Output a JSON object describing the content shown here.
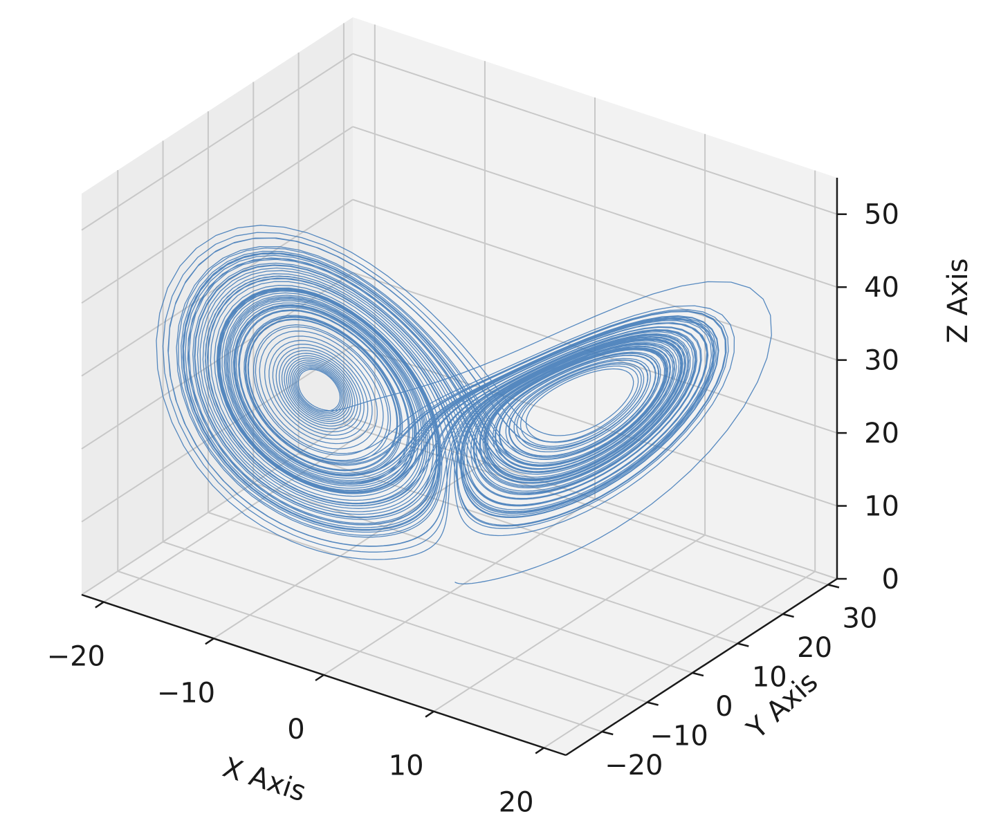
{
  "chart_data": {
    "type": "line",
    "projection": "3d",
    "title": "",
    "xlabel": "X Axis",
    "ylabel": "Y Axis",
    "zlabel": "Z Axis",
    "xlim": [
      -22,
      22
    ],
    "ylim": [
      -28,
      32
    ],
    "zlim": [
      0,
      55
    ],
    "xticks": [
      -20,
      -10,
      0,
      10,
      20
    ],
    "yticks": [
      -20,
      -10,
      0,
      10,
      20,
      30
    ],
    "zticks": [
      0,
      10,
      20,
      30,
      40,
      50
    ],
    "grid": true,
    "series": [
      {
        "generator": "lorenz",
        "sigma": 10,
        "rho": 28,
        "beta": 2.667,
        "initial": [
          0.0,
          1.0,
          1.05
        ],
        "dt": 0.01,
        "steps": 10000
      }
    ],
    "colors": {
      "line": "#3a76b6",
      "pane": "#f2f2f2",
      "grid": "#c8c8c8",
      "axis": "#1a1a1a"
    }
  }
}
